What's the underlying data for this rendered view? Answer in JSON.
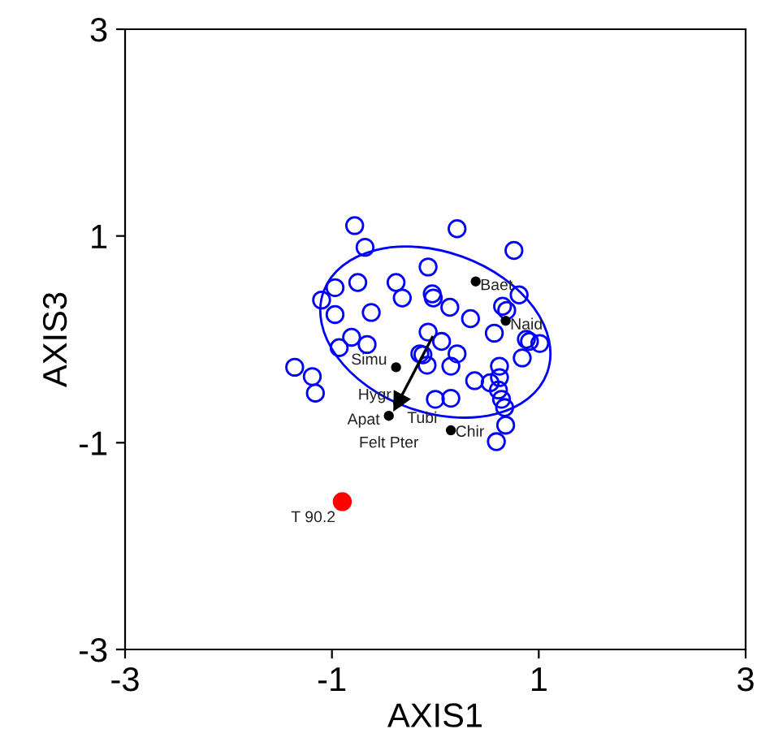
{
  "chart_data": {
    "type": "scatter",
    "xlabel": "AXIS1",
    "ylabel": "AXIS3",
    "xlim": [
      -3,
      3
    ],
    "ylim": [
      -3,
      3
    ],
    "xticks": [
      -3,
      -1,
      1,
      3
    ],
    "yticks": [
      -3,
      -1,
      1,
      3
    ],
    "grid": false,
    "series": [
      {
        "marker": "circle",
        "color": "#0000ff",
        "x": [
          -0.78,
          -0.68,
          -0.75,
          -0.97,
          -1.1,
          -0.38,
          -0.32,
          -0.97,
          -0.62,
          -0.81,
          -0.66,
          -0.93,
          -1.36,
          -1.19,
          -1.16,
          -0.15,
          0.21,
          0.76,
          -0.07,
          -0.03,
          -0.02,
          0.14,
          0.34,
          0.81,
          0.65,
          0.69,
          0.57,
          0.88,
          0.91,
          1.01,
          0.84,
          -0.07,
          0.06,
          -0.12,
          0.21,
          -0.08,
          0.15,
          0.62,
          0.62,
          0.38,
          0.53,
          0.61,
          0.64,
          0.67,
          0.68,
          0.0,
          0.15,
          0.59
        ],
        "values": [
          1.1,
          0.89,
          0.55,
          0.5,
          0.38,
          0.55,
          0.4,
          0.24,
          0.26,
          0.02,
          -0.05,
          -0.08,
          -0.27,
          -0.36,
          -0.52,
          -0.14,
          1.07,
          0.86,
          0.7,
          0.44,
          0.4,
          0.31,
          0.2,
          0.43,
          0.32,
          0.28,
          0.06,
          0.0,
          -0.02,
          -0.04,
          -0.18,
          0.07,
          -0.02,
          -0.15,
          -0.14,
          -0.25,
          -0.26,
          -0.26,
          -0.37,
          -0.4,
          -0.42,
          -0.49,
          -0.58,
          -0.66,
          -0.83,
          -0.58,
          -0.57,
          -0.99
        ]
      },
      {
        "type": "line",
        "marker": "triangle",
        "color": "#000000",
        "x": [
          -0.03,
          -0.36
        ],
        "values": [
          0.02,
          -0.61
        ]
      },
      {
        "marker": "circle",
        "color": "#000000",
        "x": [
          -0.38,
          -0.36,
          -0.45,
          0.39,
          0.68,
          0.15
        ],
        "values": [
          -0.27,
          -0.61,
          -0.74,
          0.56,
          0.18,
          -0.88
        ]
      },
      {
        "marker": "circle",
        "color": "#ff0000",
        "x": [
          -0.9
        ],
        "values": [
          -1.57
        ]
      }
    ],
    "annotations": [
      {
        "text": "Simu",
        "x": -0.38,
        "y": -0.27
      },
      {
        "text": "Hygr",
        "x": -0.36,
        "y": -0.61
      },
      {
        "text": "Apat",
        "x": -0.45,
        "y": -0.74
      },
      {
        "text": "Felt Pter",
        "x": -0.45,
        "y": -0.74
      },
      {
        "text": "Tubi",
        "x": -0.36,
        "y": -0.61
      },
      {
        "text": "Baet",
        "x": 0.39,
        "y": 0.56
      },
      {
        "text": "Naid",
        "x": 0.68,
        "y": 0.18
      },
      {
        "text": "Chir",
        "x": 0.15,
        "y": -0.88
      },
      {
        "text": "T 90.2",
        "x": -0.9,
        "y": -1.57
      }
    ]
  }
}
